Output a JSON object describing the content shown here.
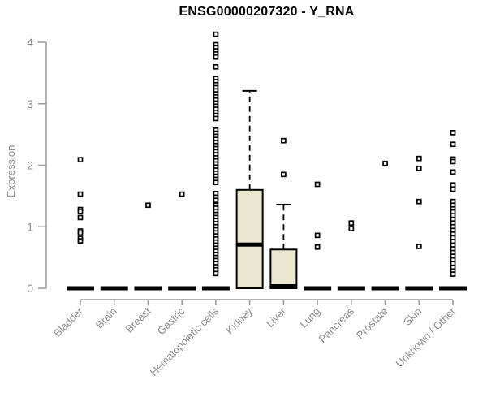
{
  "chart_data": {
    "type": "boxplot",
    "title": "ENSG00000207320 - Y_RNA",
    "ylabel": "Expression",
    "xlabel": "",
    "ylim": [
      0,
      4
    ],
    "yticks": [
      0,
      1,
      2,
      3,
      4
    ],
    "grid": false,
    "legend": "none",
    "colors": {
      "box_fill": "#ece8d0",
      "box_stroke": "#000000",
      "median": "#000000",
      "outlier_stroke": "#000000",
      "outlier_fill": "#ffffff",
      "axis_line": "#999999",
      "axis_text": "#8c8c8c",
      "title_text": "#000000"
    },
    "categories": [
      "Bladder",
      "Brain",
      "Breast",
      "Gastric",
      "Hematopoietic cells",
      "Kidney",
      "Liver",
      "Lung",
      "Pancreas",
      "Prostate",
      "Skin",
      "Unknown / Other"
    ],
    "series": [
      {
        "label": "Bladder",
        "box": null,
        "zero_bar": true,
        "outliers": [
          2.09,
          1.53,
          1.28,
          1.25,
          1.15,
          0.93,
          0.9,
          0.81,
          0.77
        ]
      },
      {
        "label": "Brain",
        "box": null,
        "zero_bar": true,
        "outliers": []
      },
      {
        "label": "Breast",
        "box": null,
        "zero_bar": true,
        "outliers": [
          1.35
        ]
      },
      {
        "label": "Gastric",
        "box": null,
        "zero_bar": true,
        "outliers": [
          1.53
        ]
      },
      {
        "label": "Hematopoietic cells",
        "box": null,
        "zero_bar": true,
        "outliers": [
          4.13,
          3.96,
          3.91,
          3.86,
          3.81,
          3.76,
          3.6,
          3.41,
          3.36,
          3.31,
          3.26,
          3.21,
          3.16,
          3.11,
          3.06,
          3.01,
          2.96,
          2.91,
          2.86,
          2.81,
          2.76,
          2.57,
          2.52,
          2.47,
          2.42,
          2.37,
          2.32,
          2.27,
          2.22,
          2.17,
          2.12,
          2.07,
          2.02,
          1.97,
          1.92,
          1.87,
          1.82,
          1.77,
          1.72,
          1.54,
          1.48,
          1.43,
          1.35,
          1.3,
          1.25,
          1.2,
          1.15,
          1.1,
          1.05,
          1.0,
          0.95,
          0.9,
          0.85,
          0.8,
          0.75,
          0.7,
          0.65,
          0.6,
          0.55,
          0.5,
          0.45,
          0.4,
          0.35,
          0.3,
          0.24
        ]
      },
      {
        "label": "Kidney",
        "box": {
          "whisker_low": 0,
          "q1": 0,
          "median": 0.71,
          "q3": 1.6,
          "whisker_high": 3.21
        },
        "zero_bar": false,
        "outliers": []
      },
      {
        "label": "Liver",
        "box": {
          "whisker_low": 0,
          "q1": 0,
          "median": 0.02,
          "q3": 0.63,
          "whisker_high": 1.36
        },
        "zero_bar": false,
        "outliers": [
          2.4,
          1.85
        ]
      },
      {
        "label": "Lung",
        "box": null,
        "zero_bar": true,
        "outliers": [
          1.69,
          0.86,
          0.67
        ]
      },
      {
        "label": "Pancreas",
        "box": null,
        "zero_bar": true,
        "outliers": [
          1.06,
          0.97
        ]
      },
      {
        "label": "Prostate",
        "box": null,
        "zero_bar": true,
        "outliers": [
          2.03
        ]
      },
      {
        "label": "Skin",
        "box": null,
        "zero_bar": true,
        "outliers": [
          2.11,
          1.95,
          1.41,
          0.68
        ]
      },
      {
        "label": "Unknown / Other",
        "box": null,
        "zero_bar": true,
        "outliers": [
          2.53,
          2.34,
          2.1,
          2.06,
          1.89,
          1.68,
          1.61,
          1.41,
          1.35,
          1.29,
          1.24,
          1.18,
          1.12,
          1.06,
          1.0,
          0.94,
          0.88,
          0.82,
          0.76,
          0.7,
          0.64,
          0.58,
          0.52,
          0.46,
          0.4,
          0.34,
          0.28,
          0.23
        ]
      }
    ]
  }
}
